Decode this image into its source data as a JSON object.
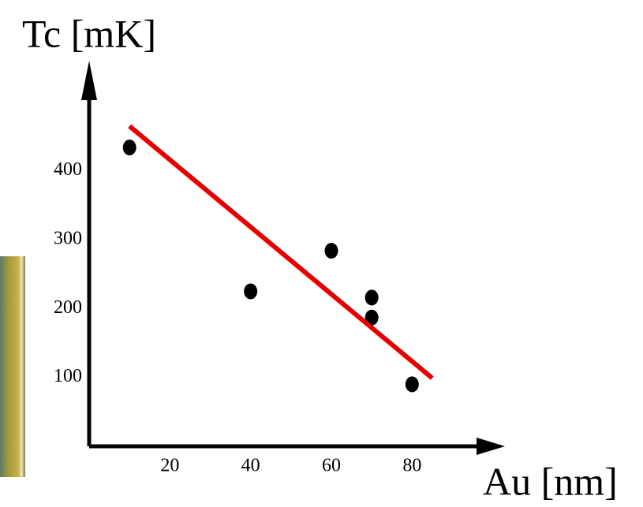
{
  "chart_data": {
    "type": "scatter",
    "y_label": "Tc [mK]",
    "x_label": "Au [nm]",
    "x": [
      10,
      40,
      60,
      70,
      70,
      80
    ],
    "values": [
      434,
      225,
      284,
      216,
      187,
      90
    ],
    "color": "#000000",
    "trend_line": {
      "x": [
        10,
        85
      ],
      "values": [
        465,
        99
      ],
      "color": "#e60000"
    },
    "xlim": [
      0,
      103
    ],
    "ylim": [
      0,
      560
    ],
    "xticks": [
      20,
      40,
      60,
      80
    ],
    "yticks": [
      100,
      200,
      300,
      400
    ],
    "grid": false
  }
}
